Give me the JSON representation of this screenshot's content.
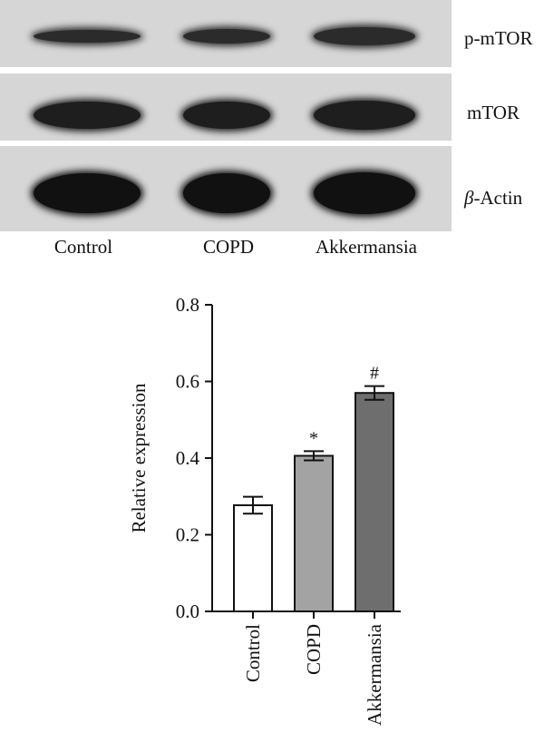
{
  "blot": {
    "rows": [
      {
        "label_prefix": "",
        "label_italic": "",
        "label": "p-mTOR"
      },
      {
        "label_prefix": "",
        "label_italic": "",
        "label": "mTOR"
      },
      {
        "label_prefix": "",
        "label_italic": "β",
        "label": "-Actin"
      }
    ],
    "lanes": [
      "Control",
      "COPD",
      "Akkermansia"
    ]
  },
  "chart_data": {
    "type": "bar",
    "categories": [
      "Control",
      "COPD",
      "Akkermansia"
    ],
    "values": [
      0.277,
      0.406,
      0.57
    ],
    "errors": [
      0.022,
      0.012,
      0.018
    ],
    "annotations": [
      "",
      "*",
      "#"
    ],
    "bar_colors": [
      "#ffffff",
      "#a3a3a3",
      "#6e6e6e"
    ],
    "title": "",
    "xlabel": "",
    "ylabel": "Relative expression",
    "ylim": [
      0,
      0.8
    ],
    "yticks": [
      "0.0",
      "0.2",
      "0.4",
      "0.6",
      "0.8"
    ],
    "grid": false
  }
}
